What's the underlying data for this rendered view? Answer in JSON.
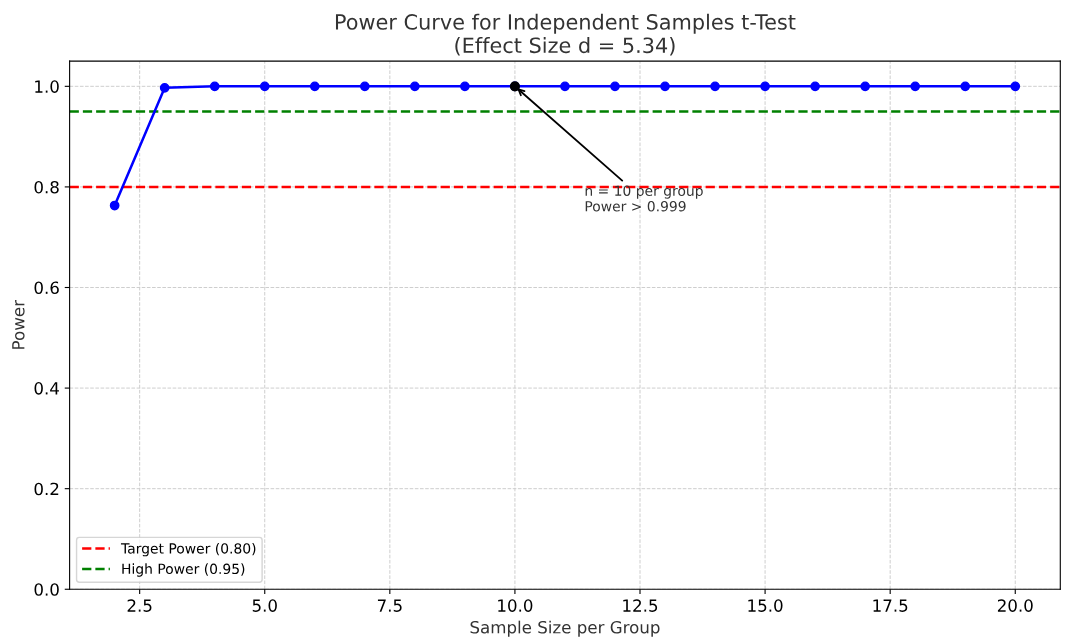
{
  "chart_data": {
    "type": "line",
    "title": "Power Curve for Independent Samples t-Test\n(Effect Size d = 5.34)",
    "xlabel": "Sample Size per Group",
    "ylabel": "Power",
    "series": [
      {
        "color": "#0000ff",
        "marker": "circle",
        "x": [
          2,
          3,
          4,
          5,
          6,
          7,
          8,
          9,
          10,
          11,
          12,
          13,
          14,
          15,
          16,
          17,
          18,
          19,
          20
        ],
        "values": [
          0.763,
          0.997,
          1.0,
          1.0,
          1.0,
          1.0,
          1.0,
          1.0,
          1.0,
          1.0,
          1.0,
          1.0,
          1.0,
          1.0,
          1.0,
          1.0,
          1.0,
          1.0,
          1.0
        ]
      },
      {
        "type": "scatter",
        "color": "#000000",
        "marker": "circle",
        "x": [
          10
        ],
        "values": [
          1.0
        ]
      }
    ],
    "ref_lines": [
      {
        "axis": "y",
        "value": 0.8,
        "label": "Target Power (0.80)",
        "color": "#ff0000",
        "line_style": "dashed"
      },
      {
        "axis": "y",
        "value": 0.95,
        "label": "High Power (0.95)",
        "color": "#008000",
        "line_style": "dashed"
      }
    ],
    "annotations": [
      {
        "text": "n = 10 per group\nPower > 0.999",
        "x": 10,
        "y": 1.0
      }
    ],
    "xlim": [
      1.1,
      20.9
    ],
    "ylim": [
      0,
      1.05
    ],
    "xticks": [
      {
        "value": 2.5,
        "label": "2.5"
      },
      {
        "value": 5,
        "label": "5.0"
      },
      {
        "value": 7.5,
        "label": "7.5"
      },
      {
        "value": 10,
        "label": "10.0"
      },
      {
        "value": 12.5,
        "label": "12.5"
      },
      {
        "value": 15,
        "label": "15.0"
      },
      {
        "value": 17.5,
        "label": "17.5"
      },
      {
        "value": 20,
        "label": "20.0"
      }
    ],
    "yticks": [
      {
        "value": 0,
        "label": "0.0"
      },
      {
        "value": 0.2,
        "label": "0.2"
      },
      {
        "value": 0.4,
        "label": "0.4"
      },
      {
        "value": 0.6,
        "label": "0.6"
      },
      {
        "value": 0.8,
        "label": "0.8"
      },
      {
        "value": 1.0,
        "label": "1.0"
      }
    ],
    "grid": true,
    "legend": "lower left"
  }
}
